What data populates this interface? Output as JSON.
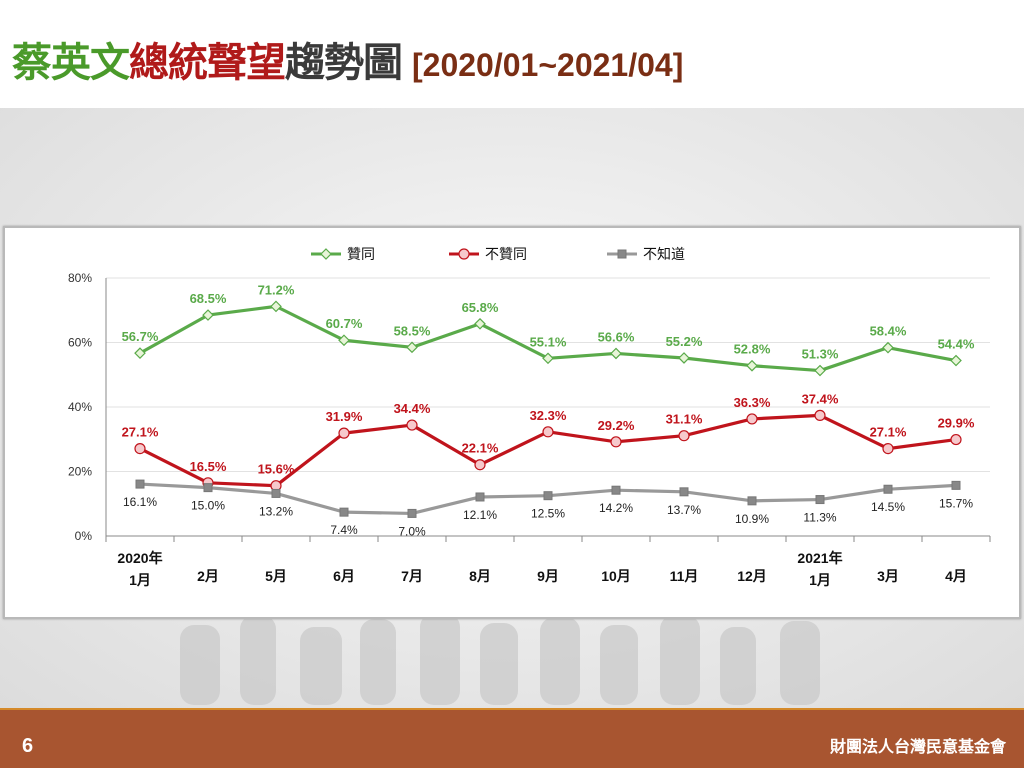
{
  "title": {
    "part1": "蔡英文",
    "part2": "總統聲望",
    "part3": "趨勢圖",
    "range": "[2020/01~2021/04]"
  },
  "colors": {
    "title_green": "#4a9a2a",
    "title_red": "#b01a1a",
    "title_dark": "#3a3a3a",
    "approve": "#5aaa4a",
    "disapprove": "#c0141c",
    "unknown": "#999999",
    "footer": "#a85530"
  },
  "footer": {
    "page": "6",
    "org": "財團法人台灣民意基金會"
  },
  "chart_data": {
    "type": "line",
    "categories": [
      "2020年 1月",
      "2月",
      "5月",
      "6月",
      "7月",
      "8月",
      "9月",
      "10月",
      "11月",
      "12月",
      "2021年 1月",
      "3月",
      "4月"
    ],
    "category_lines": [
      [
        "2020年",
        "1月"
      ],
      [
        "",
        "2月"
      ],
      [
        "",
        "5月"
      ],
      [
        "",
        "6月"
      ],
      [
        "",
        "7月"
      ],
      [
        "",
        "8月"
      ],
      [
        "",
        "9月"
      ],
      [
        "",
        "10月"
      ],
      [
        "",
        "11月"
      ],
      [
        "",
        "12月"
      ],
      [
        "2021年",
        "1月"
      ],
      [
        "",
        "3月"
      ],
      [
        "",
        "4月"
      ]
    ],
    "ylim": [
      0,
      80
    ],
    "yticks": [
      "0%",
      "20%",
      "40%",
      "60%",
      "80%"
    ],
    "grid": true,
    "legend_position": "top",
    "series": [
      {
        "name": "贊同",
        "color": "#5aaa4a",
        "marker": "diamond",
        "values": [
          56.7,
          68.5,
          71.2,
          60.7,
          58.5,
          65.8,
          55.1,
          56.6,
          55.2,
          52.8,
          51.3,
          58.4,
          54.4
        ],
        "labels": [
          "56.7%",
          "68.5%",
          "71.2%",
          "60.7%",
          "58.5%",
          "65.8%",
          "55.1%",
          "56.6%",
          "55.2%",
          "52.8%",
          "51.3%",
          "58.4%",
          "54.4%"
        ]
      },
      {
        "name": "不贊同",
        "color": "#c0141c",
        "marker": "circle",
        "values": [
          27.1,
          16.5,
          15.6,
          31.9,
          34.4,
          22.1,
          32.3,
          29.2,
          31.1,
          36.3,
          37.4,
          27.1,
          29.9
        ],
        "labels": [
          "27.1%",
          "16.5%",
          "15.6%",
          "31.9%",
          "34.4%",
          "22.1%",
          "32.3%",
          "29.2%",
          "31.1%",
          "36.3%",
          "37.4%",
          "27.1%",
          "29.9%"
        ]
      },
      {
        "name": "不知道",
        "color": "#999999",
        "marker": "square",
        "values": [
          16.1,
          15.0,
          13.2,
          7.4,
          7.0,
          12.1,
          12.5,
          14.2,
          13.7,
          10.9,
          11.3,
          14.5,
          15.7
        ],
        "labels": [
          "16.1%",
          "15.0%",
          "13.2%",
          "7.4%",
          "7.0%",
          "12.1%",
          "12.5%",
          "14.2%",
          "13.7%",
          "10.9%",
          "11.3%",
          "14.5%",
          "15.7%"
        ]
      }
    ]
  }
}
